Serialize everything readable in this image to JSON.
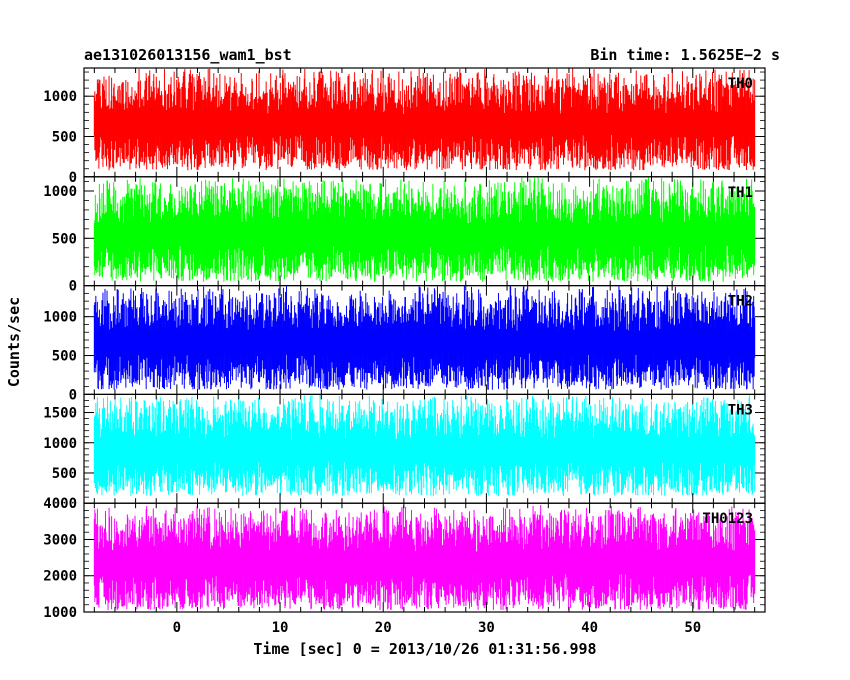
{
  "chart_data": {
    "type": "line",
    "title_left": "ae131026013156_wam1_bst",
    "title_right": "Bin time: 1.5625E−2 s",
    "xlabel": "Time [sec] 0 = 2013/10/26 01:31:56.998",
    "ylabel": "Counts/sec",
    "xlim": [
      -9,
      57
    ],
    "x_ticks": [
      0,
      10,
      20,
      30,
      40,
      50
    ],
    "x_data_range": [
      -8,
      56
    ],
    "bin_time_s": 0.015625,
    "grid": false,
    "panels": [
      {
        "name": "TH0",
        "color": "#ff0000",
        "ylim": [
          0,
          1350
        ],
        "y_ticks": [
          0,
          500,
          1000
        ],
        "y_tick_labels": [
          "0",
          "500",
          "1000"
        ],
        "baseline": 650,
        "min": 80,
        "max": 1350
      },
      {
        "name": "TH1",
        "color": "#00ff00",
        "ylim": [
          0,
          1150
        ],
        "y_ticks": [
          0,
          500,
          1000
        ],
        "y_tick_labels": [
          "0",
          "500",
          "1000"
        ],
        "baseline": 450,
        "min": 40,
        "max": 1150
      },
      {
        "name": "TH2",
        "color": "#0000ff",
        "ylim": [
          0,
          1400
        ],
        "y_ticks": [
          0,
          500,
          1000
        ],
        "y_tick_labels": [
          "0",
          "500",
          "1000"
        ],
        "baseline": 650,
        "min": 60,
        "max": 1400
      },
      {
        "name": "TH3",
        "color": "#00ffff",
        "ylim": [
          0,
          1800
        ],
        "y_ticks": [
          500,
          1000,
          1500
        ],
        "y_tick_labels": [
          "500",
          "1000",
          "1500"
        ],
        "baseline": 1000,
        "min": 120,
        "max": 1800
      },
      {
        "name": "TH0123",
        "color": "#ff00ff",
        "ylim": [
          1000,
          4000
        ],
        "y_ticks": [
          1000,
          2000,
          3000,
          4000
        ],
        "y_tick_labels": [
          "1000",
          "2000",
          "3000",
          "4000"
        ],
        "baseline": 2300,
        "min": 1050,
        "max": 3950
      }
    ]
  }
}
